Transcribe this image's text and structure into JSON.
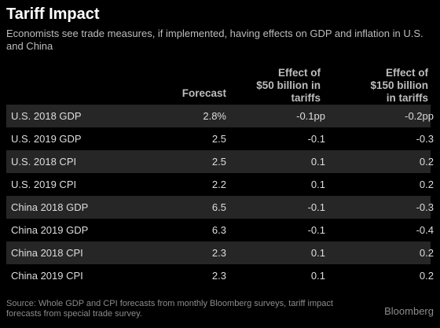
{
  "title": "Tariff Impact",
  "subtitle": "Economists see trade measures, if implemented, having effects on GDP and inflation in U.S. and China",
  "source": "Source: Whole GDP and CPI forecasts from monthly Bloomberg surveys, tariff impact forecasts from special trade survey.",
  "logo": "Bloomberg",
  "chart_data": {
    "type": "table",
    "title": "Tariff Impact",
    "columns": [
      "",
      "Forecast",
      "Effect of $50 billion in tariffs",
      "Effect of $150 billion in tariffs"
    ],
    "header_lines": {
      "forecast": [
        "Forecast"
      ],
      "eff50": [
        "Effect of",
        "$50 billion in",
        "tariffs"
      ],
      "eff150": [
        "Effect of",
        "$150 billion",
        "in tariffs"
      ]
    },
    "rows": [
      {
        "label": "U.S. 2018 GDP",
        "forecast": "2.8%",
        "e50": "-0.1pp",
        "e150": "-0.2pp"
      },
      {
        "label": "U.S. 2019 GDP",
        "forecast": "2.5",
        "e50": "-0.1",
        "e150": "-0.3"
      },
      {
        "label": "U.S. 2018 CPI",
        "forecast": "2.5",
        "e50": "0.1",
        "e150": "0.2"
      },
      {
        "label": "U.S. 2019 CPI",
        "forecast": "2.2",
        "e50": "0.1",
        "e150": "0.2"
      },
      {
        "label": "China 2018 GDP",
        "forecast": "6.5",
        "e50": "-0.1",
        "e150": "-0.3"
      },
      {
        "label": "China 2019 GDP",
        "forecast": "6.3",
        "e50": "-0.1",
        "e150": "-0.4"
      },
      {
        "label": "China 2018 CPI",
        "forecast": "2.3",
        "e50": "0.1",
        "e150": "0.2"
      },
      {
        "label": "China 2019 CPI",
        "forecast": "2.3",
        "e50": "0.1",
        "e150": "0.2"
      }
    ]
  },
  "colors": {
    "background": "#000000",
    "row_shade": "#262626",
    "text": "#dddddd",
    "muted": "#8c8c8c"
  }
}
